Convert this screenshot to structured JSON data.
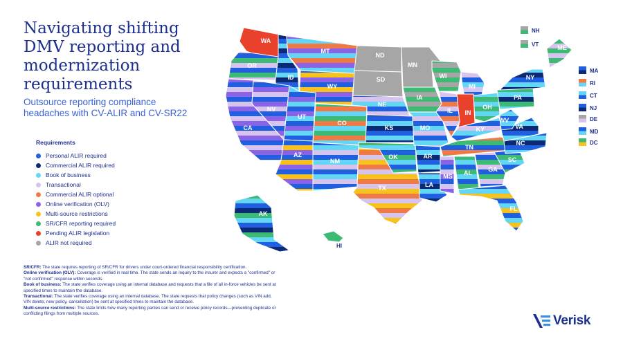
{
  "title": "Navigating shifting DMV reporting and modernization requirements",
  "subtitle": "Outsource reporting compliance headaches with CV-ALIR and CV-SR22",
  "legend": {
    "title": "Requirements",
    "items": [
      {
        "label": "Personal ALIR required",
        "color": "#1f5fe0"
      },
      {
        "label": "Commercial ALIR required",
        "color": "#0b2a73"
      },
      {
        "label": "Book of business",
        "color": "#62d6f4"
      },
      {
        "label": "Transactional",
        "color": "#d6c4ee"
      },
      {
        "label": "Commercial ALIR optional",
        "color": "#f07a45"
      },
      {
        "label": "Online verification (OLV)",
        "color": "#8a63e6"
      },
      {
        "label": "Multi-source restrictions",
        "color": "#f7c21c"
      },
      {
        "label": "SR/CFR reporting required",
        "color": "#3dba73"
      },
      {
        "label": "Pending ALIR legislation",
        "color": "#e8412c"
      },
      {
        "label": "ALIR not required",
        "color": "#a6a6a6"
      }
    ]
  },
  "notes": [
    {
      "term": "SR/CFR:",
      "text": " The state requires reporting of SR/CFR for drivers under court-ordered financial responsibility certification."
    },
    {
      "term": "Online verification (OLV):",
      "text": " Coverage is verified in real time. The state sends an inquiry to the insurer and expects a \"confirmed\" or \"not confirmed\" response within seconds."
    },
    {
      "term": "Book of business:",
      "text": " The state verifies coverage using an internal database and requests that a file of all in-force vehicles be sent at specified times to maintain the database."
    },
    {
      "term": "Transactional:",
      "text": " The state verifies coverage using an internal database. The state requests that policy changes (such as VIN add, VIN delete, new policy, cancellation) be sent at specified times to maintain the database."
    },
    {
      "term": "Multi-source restrictions:",
      "text": " The state limits how many reporting parties can send or receive policy records—preventing duplicate or conflicting filings from multiple sources."
    }
  ],
  "states": [
    {
      "abbr": "WA",
      "stripes": [
        "#e8412c"
      ]
    },
    {
      "abbr": "OR",
      "stripes": [
        "#3dba73",
        "#d6c4ee",
        "#1f5fe0"
      ]
    },
    {
      "abbr": "CA",
      "stripes": [
        "#d6c4ee",
        "#8a63e6",
        "#1f5fe0"
      ]
    },
    {
      "abbr": "ID",
      "stripes": [
        "#62d6f4",
        "#0b2a73",
        "#1f5fe0"
      ]
    },
    {
      "abbr": "NV",
      "stripes": [
        "#8a63e6",
        "#d6c4ee",
        "#1f5fe0"
      ]
    },
    {
      "abbr": "MT",
      "stripes": [
        "#f07a45",
        "#8a63e6",
        "#62d6f4"
      ]
    },
    {
      "abbr": "WY",
      "stripes": [
        "#f7c21c",
        "#8a63e6",
        "#1f5fe0"
      ]
    },
    {
      "abbr": "UT",
      "stripes": [
        "#62d6f4",
        "#1f5fe0",
        "#8a63e6"
      ]
    },
    {
      "abbr": "AZ",
      "stripes": [
        "#f7c21c",
        "#8a63e6",
        "#1f5fe0"
      ]
    },
    {
      "abbr": "CO",
      "stripes": [
        "#3dba73",
        "#f07a45",
        "#62d6f4"
      ]
    },
    {
      "abbr": "NM",
      "stripes": [
        "#62d6f4",
        "#d6c4ee",
        "#1f5fe0"
      ]
    },
    {
      "abbr": "ND",
      "stripes": [
        "#a6a6a6"
      ]
    },
    {
      "abbr": "SD",
      "stripes": [
        "#a6a6a6"
      ]
    },
    {
      "abbr": "NE",
      "stripes": [
        "#62d6f4",
        "#1f5fe0",
        "#d6c4ee"
      ]
    },
    {
      "abbr": "KS",
      "stripes": [
        "#1f5fe0",
        "#62d6f4",
        "#0b2a73"
      ]
    },
    {
      "abbr": "OK",
      "stripes": [
        "#62d6f4",
        "#1f5fe0",
        "#3dba73"
      ]
    },
    {
      "abbr": "TX",
      "stripes": [
        "#f7c21c",
        "#f07a45",
        "#d6c4ee"
      ]
    },
    {
      "abbr": "MN",
      "stripes": [
        "#a6a6a6"
      ]
    },
    {
      "abbr": "IA",
      "stripes": [
        "#3dba73",
        "#a6a6a6"
      ]
    },
    {
      "abbr": "MO",
      "stripes": [
        "#d6c4ee",
        "#1f5fe0",
        "#62d6f4"
      ]
    },
    {
      "abbr": "AR",
      "stripes": [
        "#1f5fe0",
        "#62d6f4",
        "#0b2a73"
      ]
    },
    {
      "abbr": "LA",
      "stripes": [
        "#62d6f4",
        "#1f5fe0",
        "#0b2a73"
      ]
    },
    {
      "abbr": "WI",
      "stripes": [
        "#3dba73",
        "#a6a6a6"
      ]
    },
    {
      "abbr": "IL",
      "stripes": [
        "#f07a45",
        "#d6c4ee",
        "#1f5fe0"
      ]
    },
    {
      "abbr": "MI",
      "stripes": [
        "#d6c4ee",
        "#1f5fe0",
        "#62d6f4"
      ]
    },
    {
      "abbr": "IN",
      "stripes": [
        "#e8412c"
      ]
    },
    {
      "abbr": "OH",
      "stripes": [
        "#3dba73",
        "#62d6f4"
      ]
    },
    {
      "abbr": "KY",
      "stripes": [
        "#62d6f4",
        "#1f5fe0",
        "#d6c4ee"
      ]
    },
    {
      "abbr": "TN",
      "stripes": [
        "#1f5fe0",
        "#f07a45",
        "#3dba73"
      ]
    },
    {
      "abbr": "MS",
      "stripes": [
        "#8a63e6",
        "#1f5fe0",
        "#d6c4ee"
      ]
    },
    {
      "abbr": "AL",
      "stripes": [
        "#62d6f4",
        "#1f5fe0",
        "#3dba73"
      ]
    },
    {
      "abbr": "GA",
      "stripes": [
        "#3dba73",
        "#d6c4ee",
        "#1f5fe0"
      ]
    },
    {
      "abbr": "FL",
      "stripes": [
        "#62d6f4",
        "#f7c21c",
        "#1f5fe0"
      ]
    },
    {
      "abbr": "SC",
      "stripes": [
        "#62d6f4",
        "#1f5fe0",
        "#3dba73"
      ]
    },
    {
      "abbr": "NC",
      "stripes": [
        "#1f5fe0",
        "#62d6f4",
        "#0b2a73"
      ]
    },
    {
      "abbr": "VA",
      "stripes": [
        "#1f5fe0",
        "#62d6f4",
        "#0b2a73"
      ]
    },
    {
      "abbr": "WV",
      "stripes": [
        "#1f5fe0",
        "#62d6f4"
      ]
    },
    {
      "abbr": "PA",
      "stripes": [
        "#3dba73",
        "#62d6f4",
        "#0b2a73"
      ]
    },
    {
      "abbr": "NY",
      "stripes": [
        "#0b2a73",
        "#1f5fe0",
        "#62d6f4"
      ]
    },
    {
      "abbr": "ME",
      "stripes": [
        "#3dba73",
        "#d6c4ee"
      ]
    },
    {
      "abbr": "AK",
      "stripes": [
        "#3dba73",
        "#62d6f4",
        "#1f5fe0",
        "#0b2a73"
      ]
    },
    {
      "abbr": "HI",
      "stripes": [
        "#3dba73"
      ]
    }
  ],
  "small_states": [
    {
      "abbr": "NH",
      "stripes": [
        "#a6a6a6",
        "#3dba73"
      ]
    },
    {
      "abbr": "VT",
      "stripes": [
        "#a6a6a6",
        "#3dba73"
      ]
    },
    {
      "abbr": "MA",
      "stripes": [
        "#1f5fe0",
        "#0b2a73"
      ]
    },
    {
      "abbr": "RI",
      "stripes": [
        "#f07a45",
        "#62d6f4"
      ]
    },
    {
      "abbr": "CT",
      "stripes": [
        "#62d6f4",
        "#1f5fe0"
      ]
    },
    {
      "abbr": "NJ",
      "stripes": [
        "#1f5fe0",
        "#0b2a73"
      ]
    },
    {
      "abbr": "DE",
      "stripes": [
        "#a6a6a6",
        "#d6c4ee"
      ]
    },
    {
      "abbr": "MD",
      "stripes": [
        "#1f5fe0",
        "#62d6f4"
      ]
    },
    {
      "abbr": "DC",
      "stripes": [
        "#3dba73",
        "#f7c21c"
      ]
    }
  ],
  "brand": {
    "name": "Verisk",
    "color": "#1d2f8c"
  }
}
